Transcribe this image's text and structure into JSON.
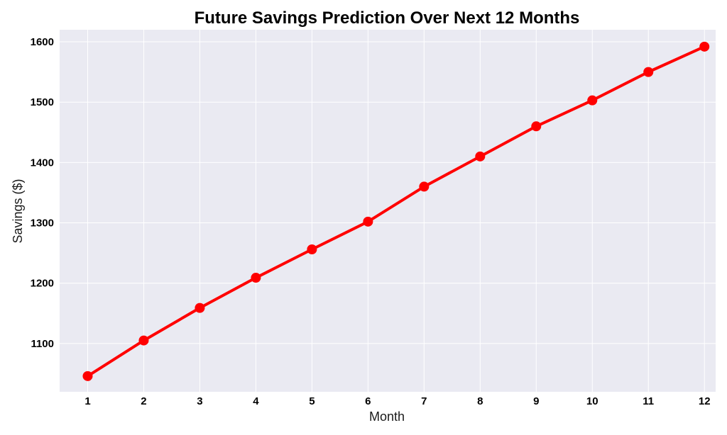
{
  "chart_data": {
    "type": "line",
    "title": "Future Savings Prediction Over Next 12 Months",
    "xlabel": "Month",
    "ylabel": "Savings ($)",
    "x": [
      1,
      2,
      3,
      4,
      5,
      6,
      7,
      8,
      9,
      10,
      11,
      12
    ],
    "series": [
      {
        "values": [
          1046,
          1105,
          1159,
          1209,
          1256,
          1302,
          1360,
          1410,
          1460,
          1503,
          1550,
          1592
        ]
      }
    ],
    "xlim": [
      0.5,
      12.2
    ],
    "ylim": [
      1020,
      1620
    ],
    "y_ticks": [
      1100,
      1200,
      1300,
      1400,
      1500,
      1600
    ],
    "x_ticks": [
      1,
      2,
      3,
      4,
      5,
      6,
      7,
      8,
      9,
      10,
      11,
      12
    ],
    "grid": true,
    "legend": "none",
    "colors": {
      "line": "#ff0000",
      "marker": "#ff0000",
      "plot_background": "#eaeaf2",
      "grid": "#ffffff"
    }
  }
}
